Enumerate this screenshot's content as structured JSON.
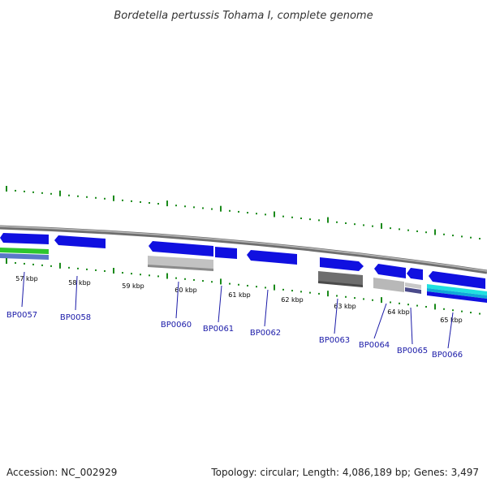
{
  "title": "Bordetella pertussis Tohama I, complete genome",
  "footer": {
    "accession": "Accession: NC_002929",
    "summary": "Topology: circular; Length: 4,086,189 bp; Genes: 3,497"
  },
  "colors": {
    "forward_gene": "#1010e0",
    "gene_label": "#1a1aa8",
    "tick_mark": "#1a8a1a",
    "backbone": "#8a8a8a"
  },
  "kbp_labels": [
    "57 kbp",
    "58 kbp",
    "59 kbp",
    "60 kbp",
    "61 kbp",
    "62 kbp",
    "63 kbp",
    "64 kbp",
    "65 kbp"
  ],
  "genes": [
    {
      "id": "BP0057",
      "label": "BP0057"
    },
    {
      "id": "BP0058",
      "label": "BP0058"
    },
    {
      "id": "BP0060",
      "label": "BP0060"
    },
    {
      "id": "BP0061",
      "label": "BP0061"
    },
    {
      "id": "BP0062",
      "label": "BP0062"
    },
    {
      "id": "BP0063",
      "label": "BP0063"
    },
    {
      "id": "BP0064",
      "label": "BP0064"
    },
    {
      "id": "BP0065",
      "label": "BP0065"
    },
    {
      "id": "BP0066",
      "label": "BP0066"
    }
  ]
}
